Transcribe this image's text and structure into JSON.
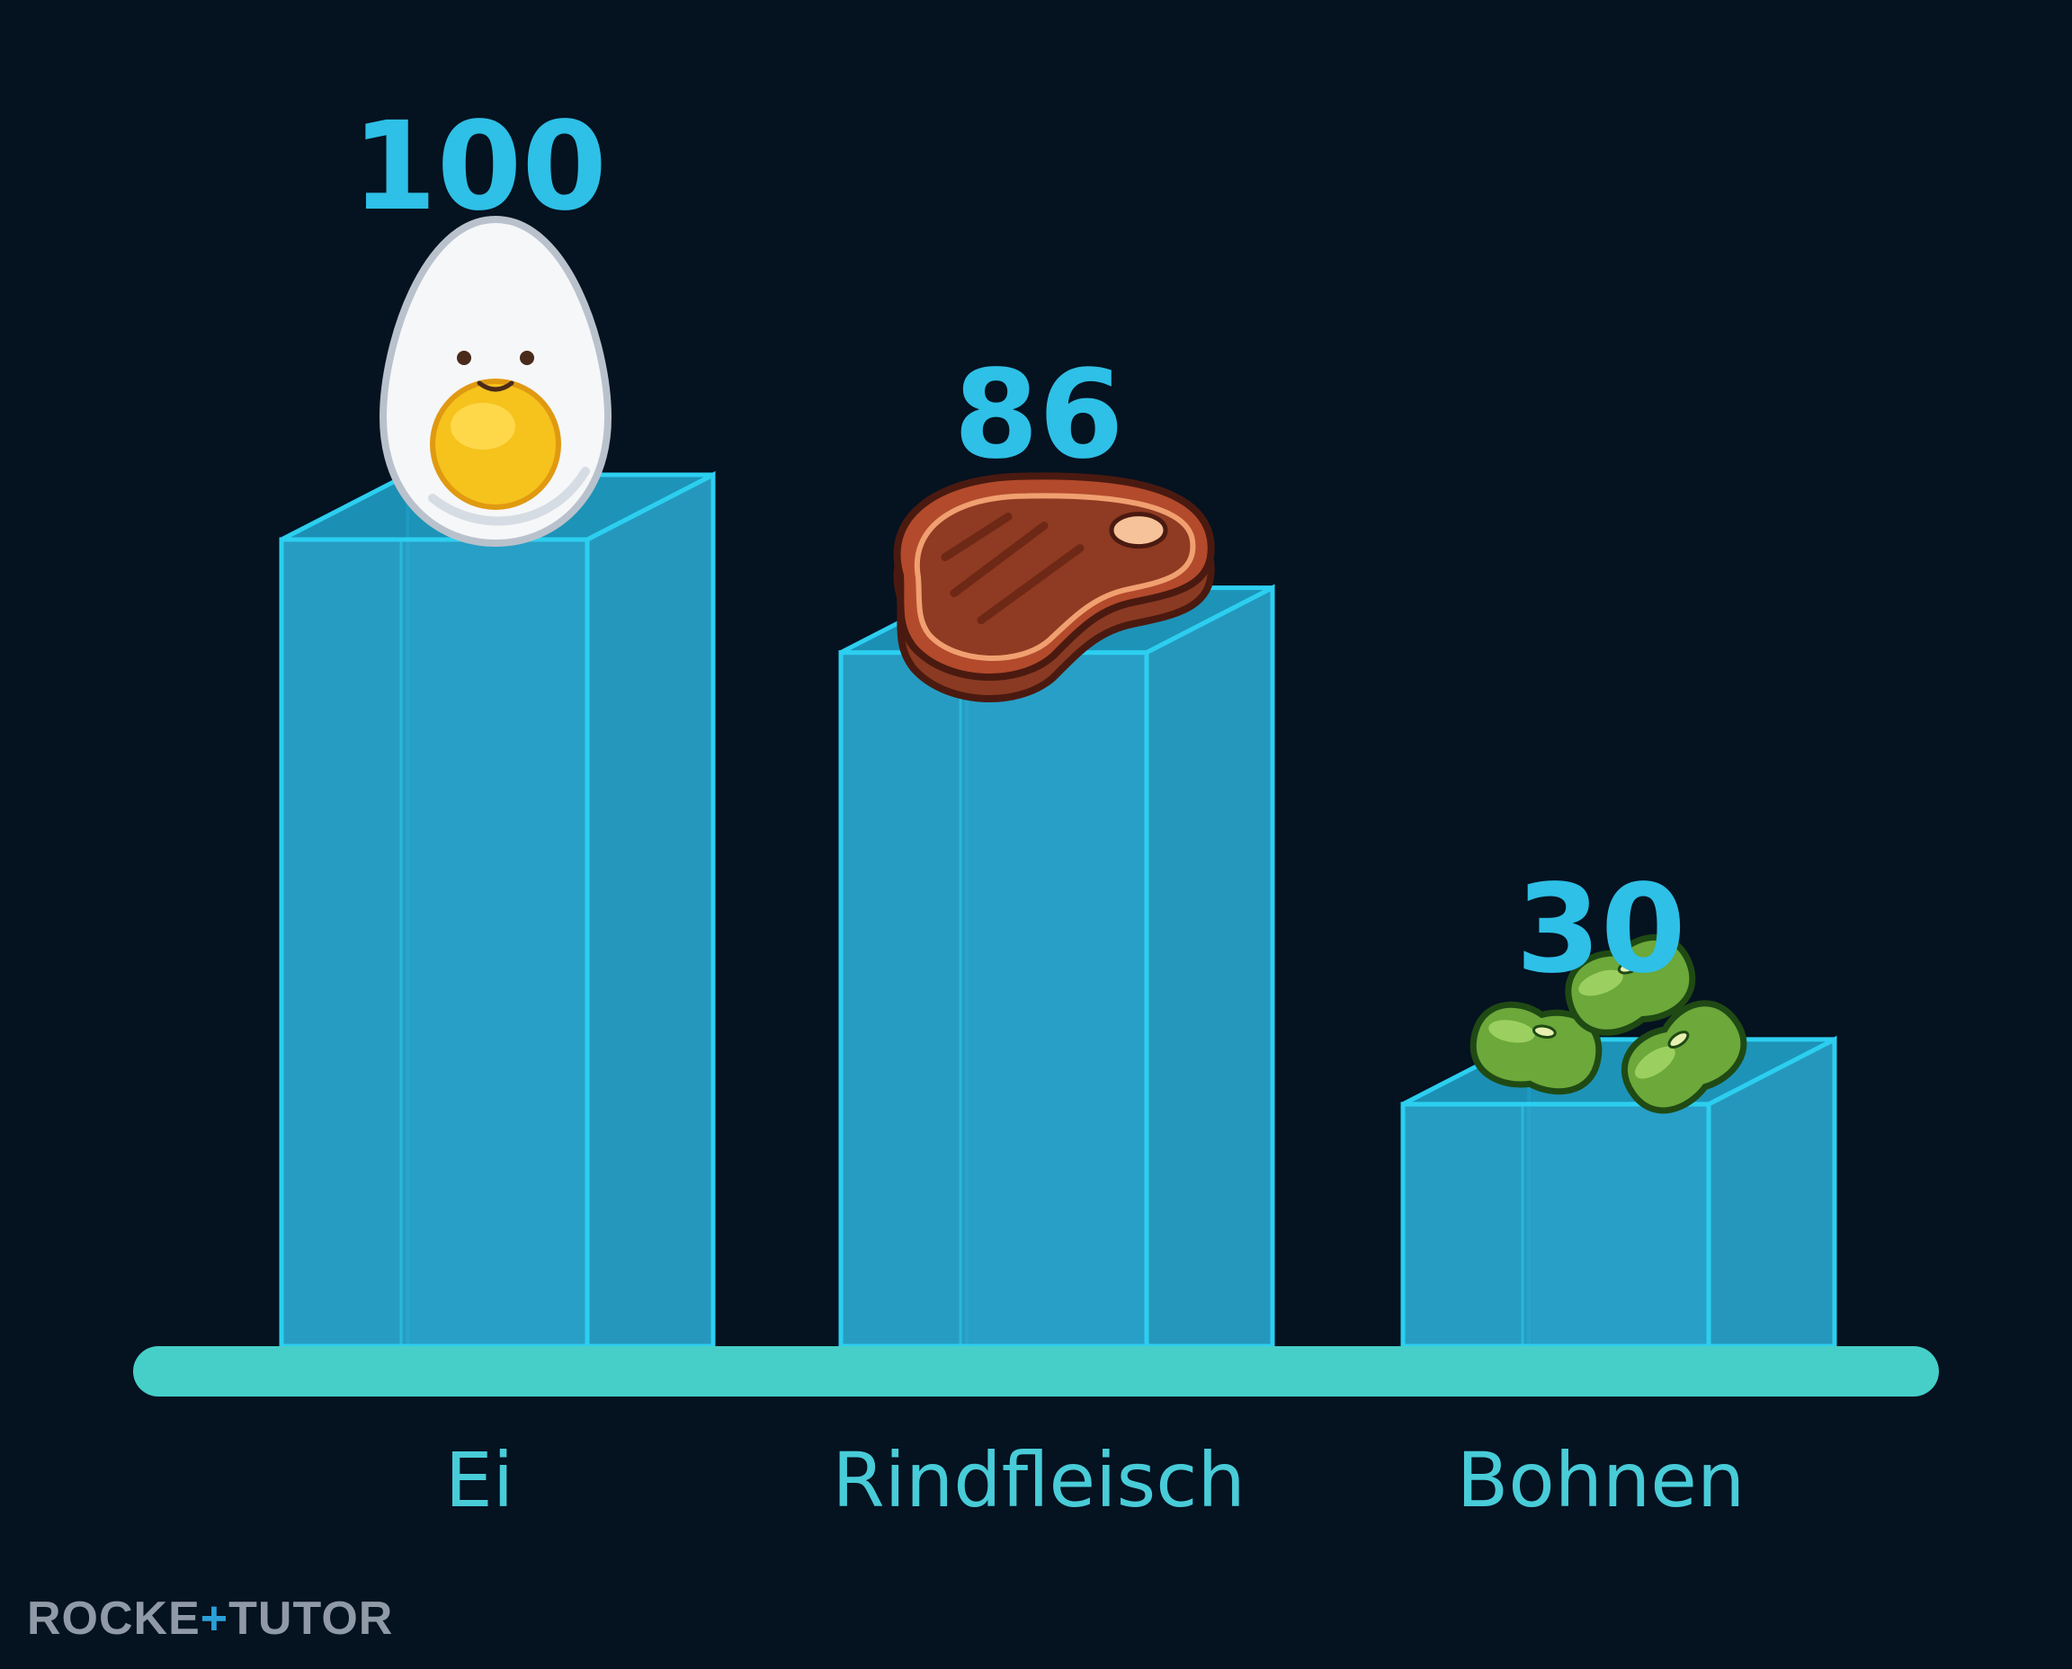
{
  "chart_data": {
    "type": "bar",
    "categories": [
      "Ei",
      "Rindfleisch",
      "Bohnen"
    ],
    "values": [
      100,
      86,
      30
    ],
    "value_labels": [
      "100",
      "86",
      "30"
    ],
    "icons": [
      "egg-icon",
      "steak-icon",
      "beans-icon"
    ],
    "title": "",
    "xlabel": "",
    "ylabel": "",
    "ylim": [
      0,
      100
    ],
    "grid": false,
    "legend": "none",
    "colors": {
      "background": "#051220",
      "bar_fill": "#2aa8d0",
      "bar_edge": "#2ccff0",
      "baseline": "#46cfc8",
      "value_text": "#2ec0e6",
      "category_text": "#48ccd8"
    }
  },
  "logo": {
    "left": "ROCKE",
    "plus": "+",
    "right": "TUTOR"
  }
}
